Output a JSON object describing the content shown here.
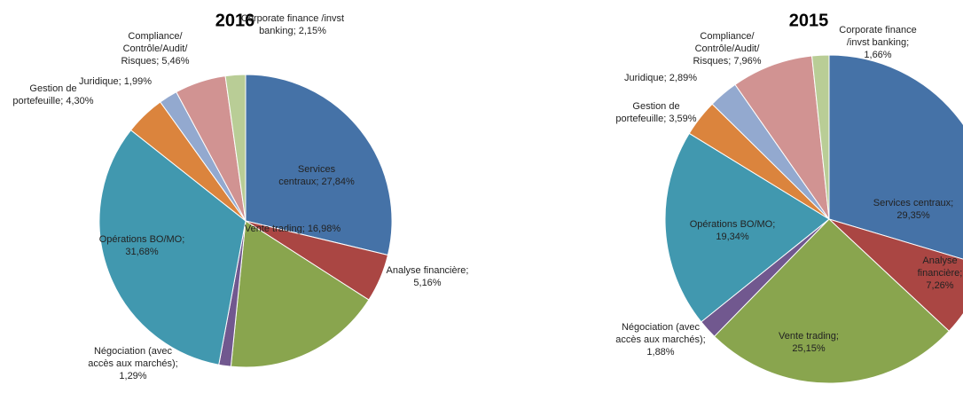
{
  "chart_data": [
    {
      "type": "pie",
      "title": "2016",
      "categories": [
        "Services centraux;",
        "Analyse financière;",
        "Vente trading;",
        "Négociation (avec accès aux marchés);",
        "Opérations BO/MO;",
        "Gestion de portefeuille;",
        "Juridique;",
        "Compliance/ Contrôle/Audit/ Risques;",
        "Corporate finance /invst banking;"
      ],
      "values": [
        27.84,
        5.16,
        16.98,
        1.29,
        31.68,
        4.3,
        1.99,
        5.46,
        2.15
      ],
      "value_labels": [
        "27,84%",
        "5,16%",
        "16,98%",
        "1,29%",
        "31,68%",
        "4,30%",
        "1,99%",
        "5,46%",
        "2,15%"
      ],
      "colors": [
        "#4572a7",
        "#aa4643",
        "#89a54e",
        "#71588f",
        "#4198af",
        "#db843d",
        "#93a9cf",
        "#d19392",
        "#b9cd96"
      ]
    },
    {
      "type": "pie",
      "title": "2015",
      "categories": [
        "Services centraux;",
        "Analyse financière;",
        "Vente trading;",
        "Négociation (avec accès aux marchés);",
        "Opérations BO/MO;",
        "Gestion de portefeuille;",
        "Juridique;",
        "Compliance/ Contrôle/Audit/ Risques;",
        "Corporate finance /invst banking;"
      ],
      "values": [
        29.35,
        7.26,
        25.15,
        1.88,
        19.34,
        3.59,
        2.89,
        7.96,
        1.66
      ],
      "value_labels": [
        "29,35%",
        "7,26%",
        "25,15%",
        "1,88%",
        "19,34%",
        "3,59%",
        "2,89%",
        "7,96%",
        "1,66%"
      ],
      "colors": [
        "#4572a7",
        "#aa4643",
        "#89a54e",
        "#71588f",
        "#4198af",
        "#db843d",
        "#93a9cf",
        "#d19392",
        "#b9cd96"
      ]
    }
  ]
}
